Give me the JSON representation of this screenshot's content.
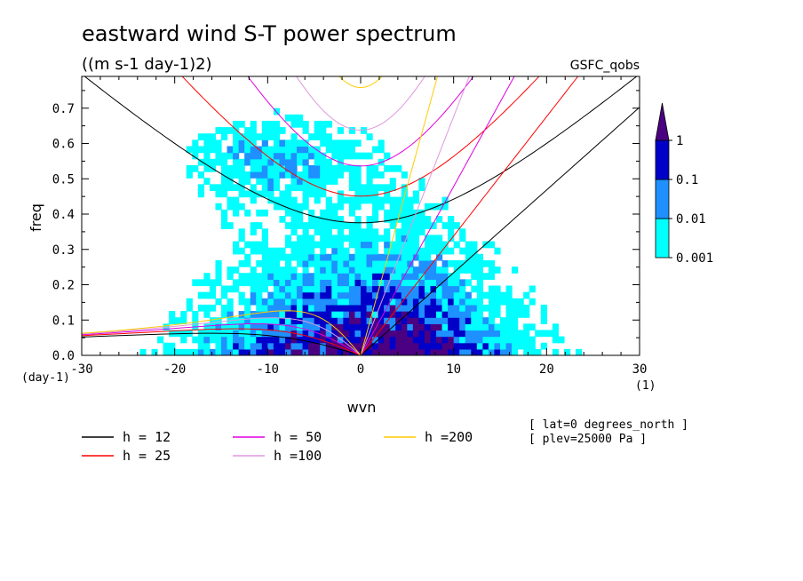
{
  "chart_data": {
    "type": "heatmap",
    "title": "eastward wind S-T power spectrum",
    "subtitle": "((m s-1 day-1)2)",
    "source_label": "GSFC_qobs",
    "xlabel": "wvn",
    "ylabel": "freq",
    "x_unit": "(1)",
    "y_unit": "(day-1)",
    "xlim": [
      -30,
      30
    ],
    "ylim": [
      0,
      0.79
    ],
    "xticks": [
      -30,
      -20,
      -10,
      0,
      10,
      20,
      30
    ],
    "yticks": [
      0.0,
      0.1,
      0.2,
      0.3,
      0.4,
      0.5,
      0.6,
      0.7
    ],
    "xtick_labels": [
      "-30",
      "-20",
      "-10",
      "0",
      "10",
      "20",
      "30"
    ],
    "ytick_labels": [
      "0.0",
      "0.1",
      "0.2",
      "0.3",
      "0.4",
      "0.5",
      "0.6",
      "0.7"
    ],
    "colorbar": {
      "levels": [
        0.001,
        0.01,
        0.1,
        1
      ],
      "labels": [
        "0.001",
        "0.01",
        "0.1",
        "1"
      ],
      "colors": [
        "#00ffff",
        "#1e90ff",
        "#0000c8",
        "#4b0082"
      ]
    },
    "series": [
      {
        "name": "h = 12",
        "equivalent_depth": 12,
        "color": "#000000"
      },
      {
        "name": "h = 25",
        "equivalent_depth": 25,
        "color": "#ff0000"
      },
      {
        "name": "h = 50",
        "equivalent_depth": 50,
        "color": "#e000e0"
      },
      {
        "name": "h =100",
        "equivalent_depth": 100,
        "color": "#dd99dd"
      },
      {
        "name": "h =200",
        "equivalent_depth": 200,
        "color": "#ffcc00"
      }
    ],
    "annotations": [
      "[ lat=0 degrees_north ]",
      "[ plev=25000 Pa ]"
    ]
  }
}
